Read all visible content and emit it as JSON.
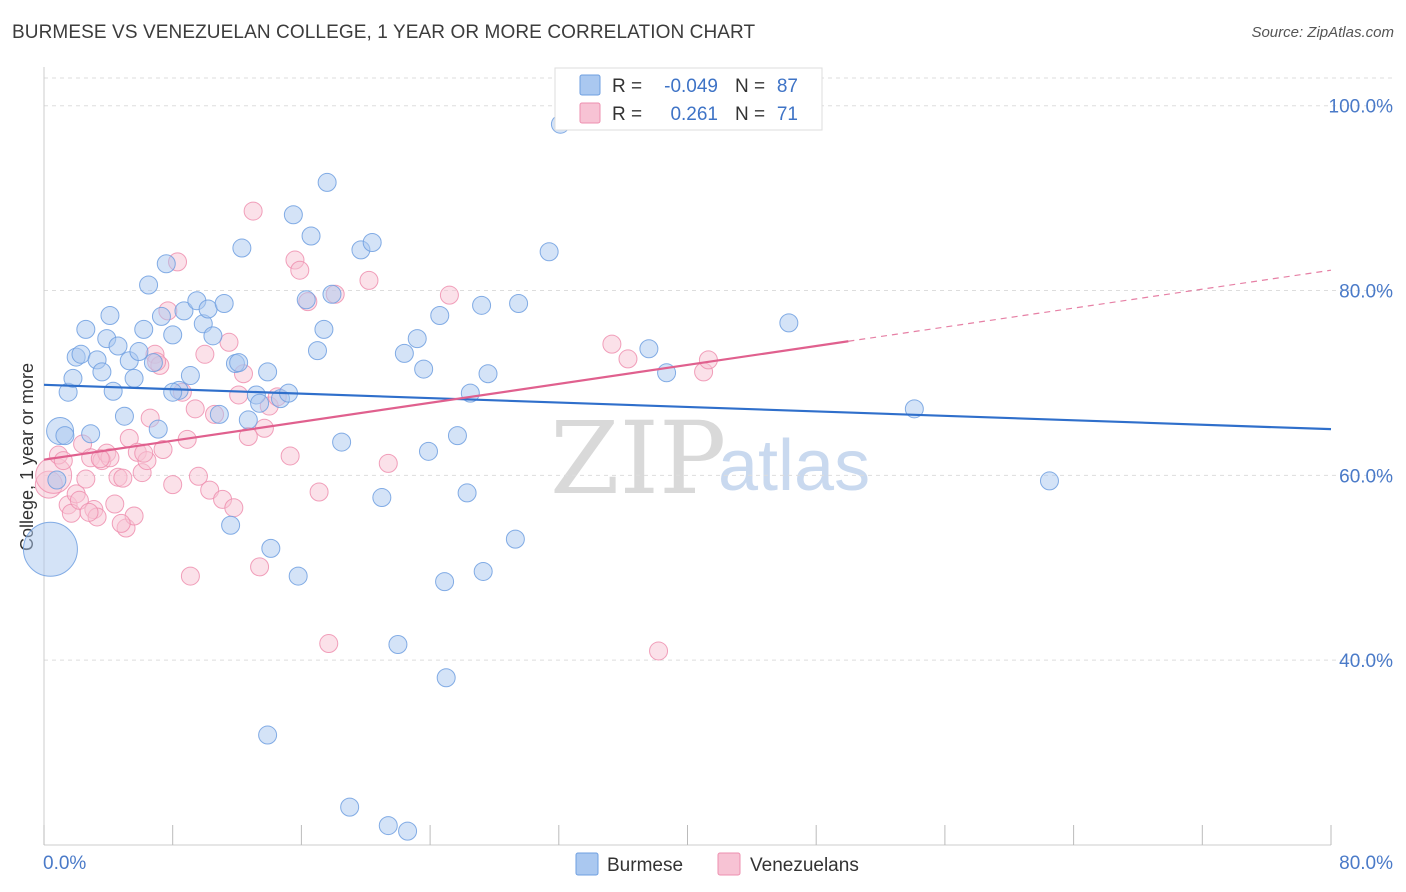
{
  "title": "BURMESE VS VENEZUELAN COLLEGE, 1 YEAR OR MORE CORRELATION CHART",
  "source": "Source: ZipAtlas.com",
  "colors": {
    "burmese": "#6f9fe0",
    "burmese_fill": "#aac8f0",
    "burmese_line": "#2f6fcb",
    "venezuelan": "#ee8faf",
    "venezuelan_fill": "#f7c3d4",
    "venezuelan_line": "#e0608e",
    "axis_text": "#4a7ac8",
    "grid": "#dddddd"
  },
  "legend": {
    "rows": [
      {
        "r_label": "R =",
        "r_value": "-0.049",
        "n_label": "N =",
        "n_value": "87"
      },
      {
        "r_label": "R =",
        "r_value": "0.261",
        "n_label": "N =",
        "n_value": "71"
      }
    ]
  },
  "bottom_legend": [
    "Burmese",
    "Venezuelans"
  ],
  "watermark": {
    "zip": "ZIP",
    "atlas": "atlas"
  },
  "chart_data": {
    "type": "scatter",
    "title": "BURMESE VS VENEZUELAN COLLEGE, 1 YEAR OR MORE CORRELATION CHART",
    "xlabel": "",
    "ylabel": "College, 1 year or more",
    "xlim": [
      0,
      80
    ],
    "ylim": [
      20,
      103
    ],
    "x_tick_labels": [
      "0.0%",
      "80.0%"
    ],
    "y_ticks": [
      40,
      60,
      80,
      100
    ],
    "y_tick_labels": [
      "40.0%",
      "60.0%",
      "80.0%",
      "100.0%"
    ],
    "series": [
      {
        "name": "Burmese",
        "R": -0.049,
        "N": 87,
        "trend": {
          "x": [
            0,
            80
          ],
          "y": [
            69.8,
            65.0
          ],
          "dashed_from": null
        },
        "points": [
          [
            0.4,
            52,
            3
          ],
          [
            0.8,
            59.5,
            1
          ],
          [
            1.0,
            64.8,
            1.5
          ],
          [
            1.3,
            64.3,
            1
          ],
          [
            1.5,
            69,
            1
          ],
          [
            1.8,
            70.5,
            1
          ],
          [
            2.0,
            72.8,
            1
          ],
          [
            2.3,
            73.1,
            1
          ],
          [
            2.6,
            75.8,
            1
          ],
          [
            2.9,
            64.5,
            1
          ],
          [
            3.3,
            72.5,
            1
          ],
          [
            3.6,
            71.2,
            1
          ],
          [
            3.9,
            74.8,
            1
          ],
          [
            4.1,
            77.3,
            1
          ],
          [
            4.3,
            69.1,
            1
          ],
          [
            4.6,
            74,
            1
          ],
          [
            5.0,
            66.4,
            1
          ],
          [
            5.3,
            72.4,
            1
          ],
          [
            5.6,
            70.5,
            1
          ],
          [
            5.9,
            73.4,
            1
          ],
          [
            6.2,
            75.8,
            1
          ],
          [
            6.5,
            80.6,
            1
          ],
          [
            6.8,
            72.2,
            1
          ],
          [
            7.1,
            65,
            1
          ],
          [
            7.3,
            77.2,
            1
          ],
          [
            7.6,
            82.9,
            1
          ],
          [
            8.0,
            75.2,
            1
          ],
          [
            8.4,
            69.2,
            1
          ],
          [
            8.7,
            77.8,
            1
          ],
          [
            9.1,
            70.8,
            1
          ],
          [
            9.5,
            78.9,
            1
          ],
          [
            9.9,
            76.4,
            1
          ],
          [
            10.2,
            78,
            1
          ],
          [
            10.5,
            75.1,
            1
          ],
          [
            10.9,
            66.6,
            1
          ],
          [
            11.2,
            78.6,
            1
          ],
          [
            11.6,
            54.6,
            1
          ],
          [
            11.9,
            72.1,
            1
          ],
          [
            12.3,
            84.6,
            1
          ],
          [
            12.7,
            66,
            1
          ],
          [
            13.2,
            68.7,
            1
          ],
          [
            13.4,
            67.8,
            1
          ],
          [
            13.9,
            71.2,
            1
          ],
          [
            14.1,
            52.1,
            1
          ],
          [
            14.7,
            68.3,
            1
          ],
          [
            15.2,
            68.9,
            1
          ],
          [
            15.5,
            88.2,
            1
          ],
          [
            15.8,
            49.1,
            1
          ],
          [
            16.3,
            79,
            1
          ],
          [
            16.6,
            85.9,
            1
          ],
          [
            17.0,
            73.5,
            1
          ],
          [
            17.4,
            75.8,
            1
          ],
          [
            17.6,
            91.7,
            1
          ],
          [
            17.9,
            79.6,
            1
          ],
          [
            18.5,
            63.6,
            1
          ],
          [
            19.0,
            24.1,
            1
          ],
          [
            19.7,
            84.4,
            1
          ],
          [
            20.4,
            85.2,
            1
          ],
          [
            21.0,
            57.6,
            1
          ],
          [
            21.4,
            22.1,
            1
          ],
          [
            22.0,
            41.7,
            1
          ],
          [
            22.6,
            21.5,
            1
          ],
          [
            22.4,
            73.2,
            1
          ],
          [
            23.2,
            74.8,
            1
          ],
          [
            23.6,
            71.5,
            1
          ],
          [
            23.9,
            62.6,
            1
          ],
          [
            24.6,
            77.3,
            1
          ],
          [
            25.0,
            38.1,
            1
          ],
          [
            24.9,
            48.5,
            1
          ],
          [
            25.7,
            64.3,
            1
          ],
          [
            26.3,
            58.1,
            1
          ],
          [
            26.5,
            68.9,
            1
          ],
          [
            27.2,
            78.4,
            1
          ],
          [
            27.3,
            49.6,
            1
          ],
          [
            27.6,
            71,
            1
          ],
          [
            29.3,
            53.1,
            1
          ],
          [
            29.5,
            78.6,
            1
          ],
          [
            31.4,
            84.2,
            1
          ],
          [
            32.1,
            98,
            1
          ],
          [
            37.6,
            73.7,
            1
          ],
          [
            38.7,
            71.1,
            1
          ],
          [
            46.3,
            76.5,
            1
          ],
          [
            54.1,
            67.2,
            1
          ],
          [
            62.5,
            59.4,
            1
          ],
          [
            13.9,
            31.9,
            1
          ],
          [
            8.0,
            69,
            1
          ],
          [
            12.1,
            72.2,
            1
          ]
        ]
      },
      {
        "name": "Venezuelans",
        "R": 0.261,
        "N": 71,
        "trend": {
          "x": [
            0,
            80
          ],
          "y": [
            61.7,
            82.2
          ],
          "dashed_from": 50
        },
        "points": [
          [
            0.3,
            59,
            1.5
          ],
          [
            0.6,
            60,
            2
          ],
          [
            0.9,
            62.2,
            1
          ],
          [
            1.2,
            61.6,
            1
          ],
          [
            1.5,
            56.8,
            1
          ],
          [
            1.7,
            55.9,
            1
          ],
          [
            2.0,
            58,
            1
          ],
          [
            2.2,
            57.3,
            1
          ],
          [
            2.4,
            63.4,
            1
          ],
          [
            2.6,
            59.6,
            1
          ],
          [
            2.9,
            61.9,
            1
          ],
          [
            3.1,
            56.3,
            1
          ],
          [
            3.3,
            55.5,
            1
          ],
          [
            3.6,
            61.6,
            1
          ],
          [
            3.9,
            62.4,
            1
          ],
          [
            4.1,
            61.9,
            1
          ],
          [
            4.4,
            56.9,
            1
          ],
          [
            4.6,
            59.8,
            1
          ],
          [
            4.9,
            59.7,
            1
          ],
          [
            5.1,
            54.3,
            1
          ],
          [
            5.3,
            64,
            1
          ],
          [
            5.6,
            55.6,
            1
          ],
          [
            5.8,
            62.5,
            1
          ],
          [
            6.1,
            60.3,
            1
          ],
          [
            6.4,
            61.6,
            1
          ],
          [
            6.6,
            66.2,
            1
          ],
          [
            6.9,
            73.1,
            1
          ],
          [
            7.2,
            71.9,
            1
          ],
          [
            7.4,
            62.8,
            1
          ],
          [
            7.7,
            77.8,
            1
          ],
          [
            8.0,
            59,
            1
          ],
          [
            8.3,
            83.1,
            1
          ],
          [
            8.6,
            69,
            1
          ],
          [
            8.9,
            63.9,
            1
          ],
          [
            9.1,
            49.1,
            1
          ],
          [
            9.6,
            59.9,
            1
          ],
          [
            10.0,
            73.1,
            1
          ],
          [
            10.3,
            58.4,
            1
          ],
          [
            10.6,
            66.6,
            1
          ],
          [
            11.1,
            57.4,
            1
          ],
          [
            11.5,
            74.4,
            1
          ],
          [
            11.8,
            56.5,
            1
          ],
          [
            12.1,
            68.7,
            1
          ],
          [
            12.4,
            71,
            1
          ],
          [
            12.7,
            64.2,
            1
          ],
          [
            13.0,
            88.6,
            1
          ],
          [
            13.4,
            50.1,
            1
          ],
          [
            13.7,
            65.1,
            1
          ],
          [
            14.0,
            67.5,
            1
          ],
          [
            14.5,
            68.5,
            1
          ],
          [
            15.3,
            62.1,
            1
          ],
          [
            15.6,
            83.3,
            1
          ],
          [
            15.9,
            82.2,
            1
          ],
          [
            16.4,
            78.8,
            1
          ],
          [
            17.1,
            58.2,
            1
          ],
          [
            17.7,
            41.8,
            1
          ],
          [
            18.1,
            79.6,
            1
          ],
          [
            20.2,
            81.1,
            1
          ],
          [
            21.4,
            61.3,
            1
          ],
          [
            25.2,
            79.5,
            1
          ],
          [
            35.3,
            74.2,
            1
          ],
          [
            36.3,
            72.6,
            1
          ],
          [
            38.2,
            41,
            1
          ],
          [
            41.0,
            71.2,
            1
          ],
          [
            41.3,
            72.5,
            1
          ],
          [
            3.5,
            61.8,
            1
          ],
          [
            4.8,
            54.8,
            1
          ],
          [
            7.0,
            72.3,
            1
          ],
          [
            9.4,
            67.2,
            1
          ],
          [
            6.2,
            62.4,
            1
          ],
          [
            2.8,
            56,
            1
          ]
        ]
      }
    ]
  }
}
